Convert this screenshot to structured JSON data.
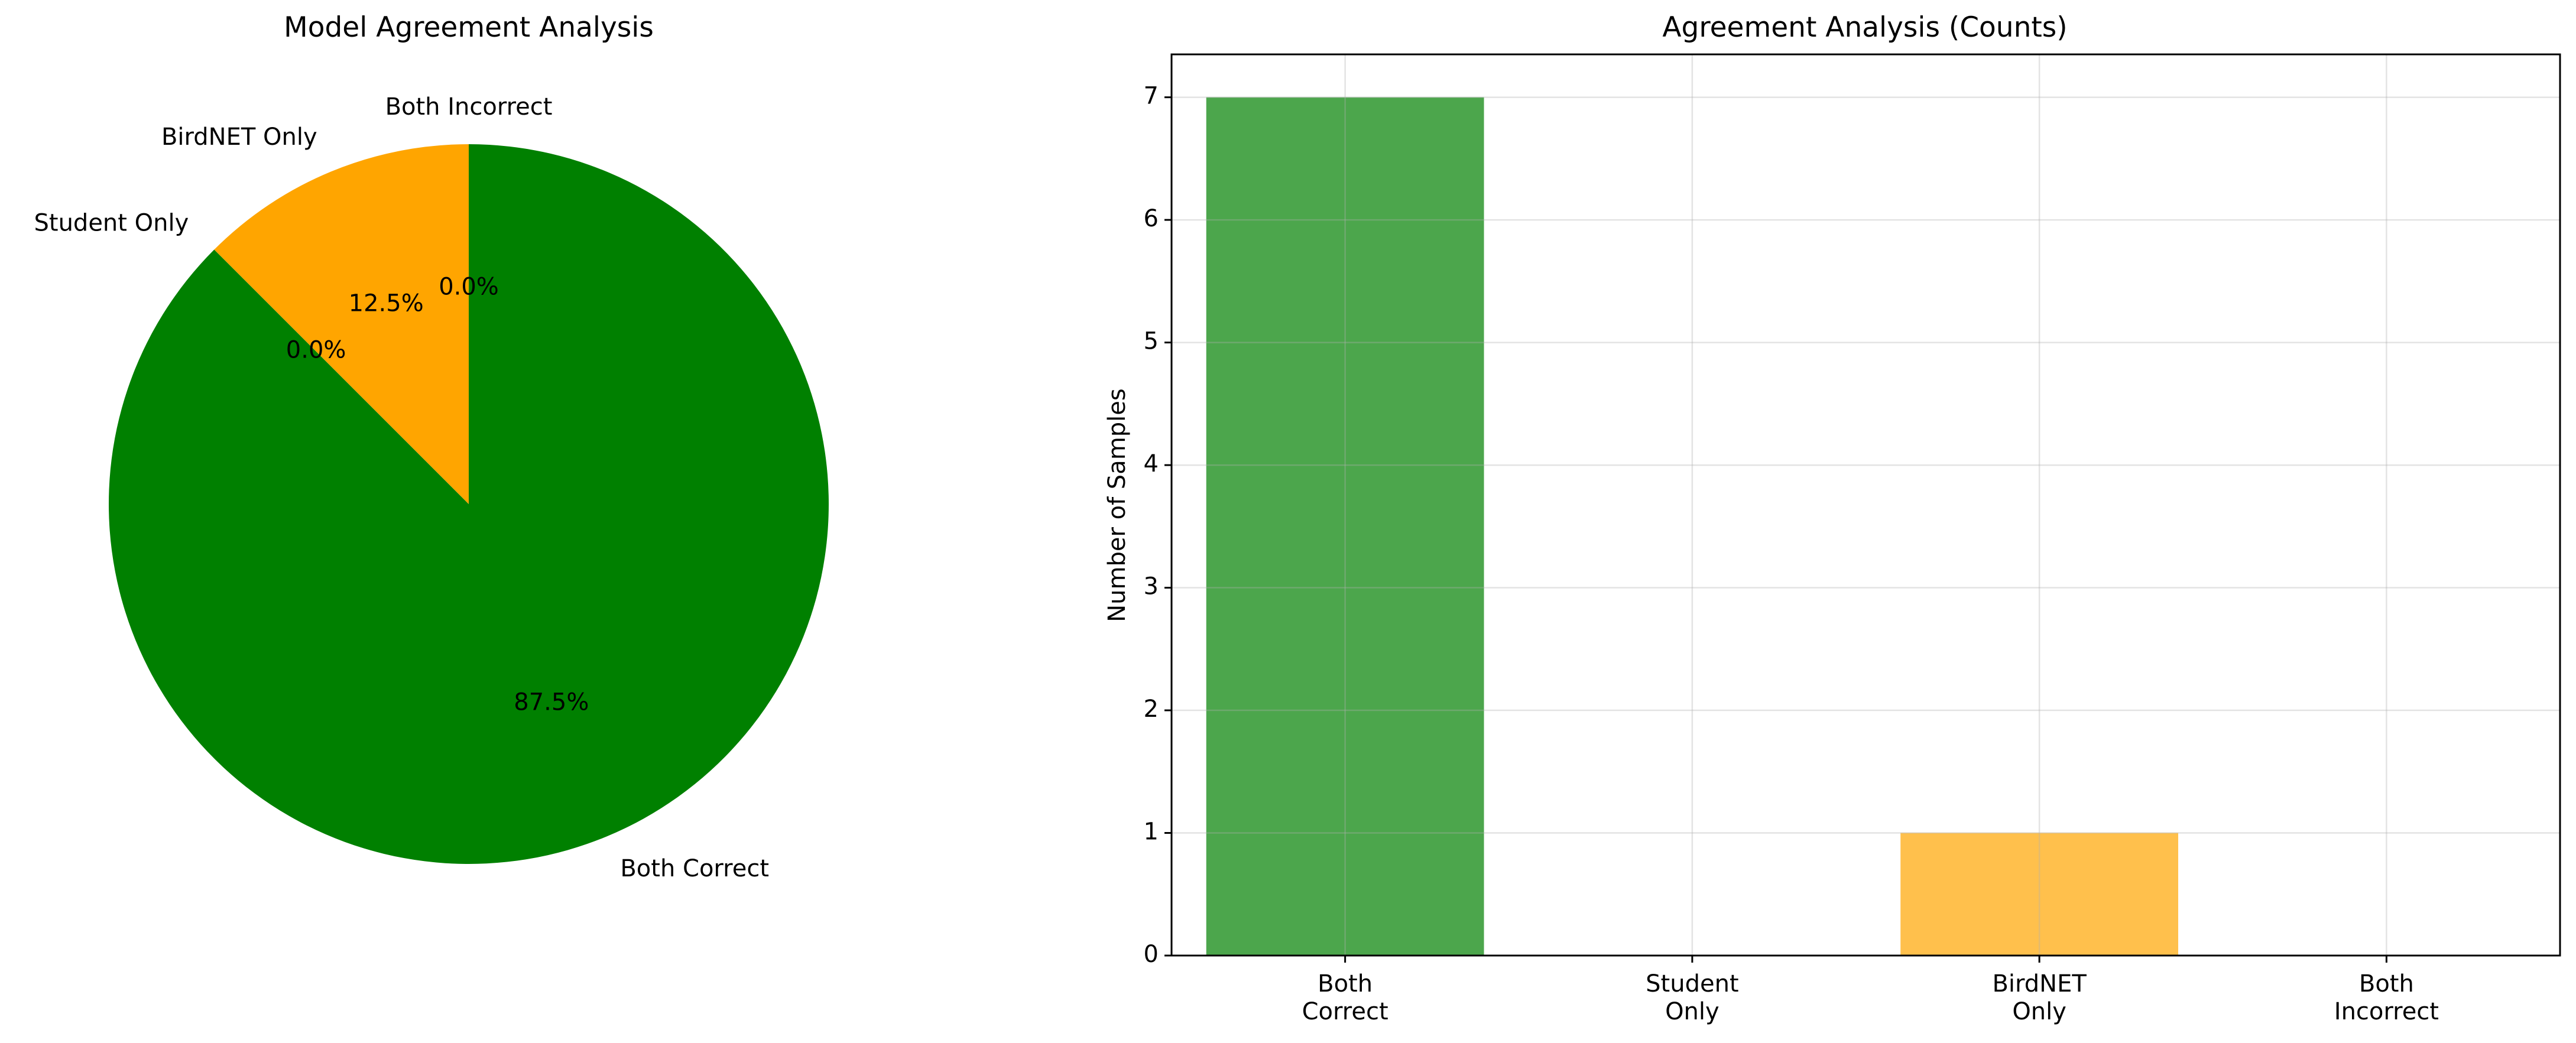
{
  "chart_data": [
    {
      "type": "pie",
      "title": "Model Agreement Analysis",
      "labels": [
        "Both Correct",
        "Student Only",
        "BirdNET Only",
        "Both Incorrect"
      ],
      "values": [
        7,
        0,
        1,
        0
      ],
      "percent_labels": [
        "87.5%",
        "0.0%",
        "12.5%",
        "0.0%"
      ],
      "colors": [
        "#008000",
        "#1f77b4",
        "#ffa500",
        "#d62728"
      ],
      "start_angle": 90,
      "direction": "clockwise"
    },
    {
      "type": "bar",
      "title": "Agreement Analysis (Counts)",
      "categories": [
        "Both\nCorrect",
        "Student\nOnly",
        "BirdNET\nOnly",
        "Both\nIncorrect"
      ],
      "values": [
        7,
        0,
        1,
        0
      ],
      "colors": [
        "#008000",
        "#1f77b4",
        "#ffa500",
        "#d62728"
      ],
      "bar_alpha": 0.7,
      "ylabel": "Number of Samples",
      "xlabel": "",
      "ylim": [
        0,
        7.35
      ],
      "yticks": [
        "0",
        "1",
        "2",
        "3",
        "4",
        "5",
        "6",
        "7"
      ],
      "grid": true
    }
  ]
}
